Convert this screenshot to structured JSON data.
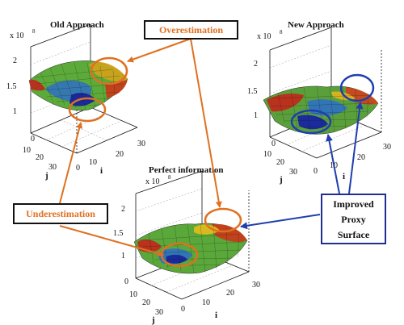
{
  "figure": {
    "colors": {
      "callout_orange": "#e0701f",
      "callout_blue": "#1f3fae",
      "frame": "#111111"
    },
    "plots": [
      {
        "id": "old",
        "title": "Old Approach",
        "multiplier": "x 10",
        "exponent": "8",
        "z_ticks": [
          "2",
          "1.5",
          "1"
        ],
        "j_ticks": [
          "0",
          "10",
          "20",
          "30"
        ],
        "i_ticks": [
          "0",
          "10",
          "20",
          "30"
        ],
        "j_label": "j",
        "i_label": "i"
      },
      {
        "id": "new",
        "title": "New Approach",
        "multiplier": "x 10",
        "exponent": "8",
        "z_ticks": [
          "2",
          "1.5",
          "1"
        ],
        "j_ticks": [
          "0",
          "10",
          "20",
          "30"
        ],
        "i_ticks": [
          "0",
          "10",
          "20",
          "30"
        ],
        "j_label": "j",
        "i_label": "i"
      },
      {
        "id": "perfect",
        "title": "Perfect information",
        "multiplier": "x 10",
        "exponent": "8",
        "z_ticks": [
          "2",
          "1.5",
          "1"
        ],
        "j_ticks": [
          "0",
          "10",
          "20",
          "30"
        ],
        "i_ticks": [
          "0",
          "10",
          "20",
          "30"
        ],
        "j_label": "j",
        "i_label": "i"
      }
    ],
    "callouts": {
      "overestimation": "Overestimation",
      "underestimation": "Underestimation",
      "improved_line1": "Improved",
      "improved_line2": "Proxy",
      "improved_line3": "Surface"
    }
  }
}
